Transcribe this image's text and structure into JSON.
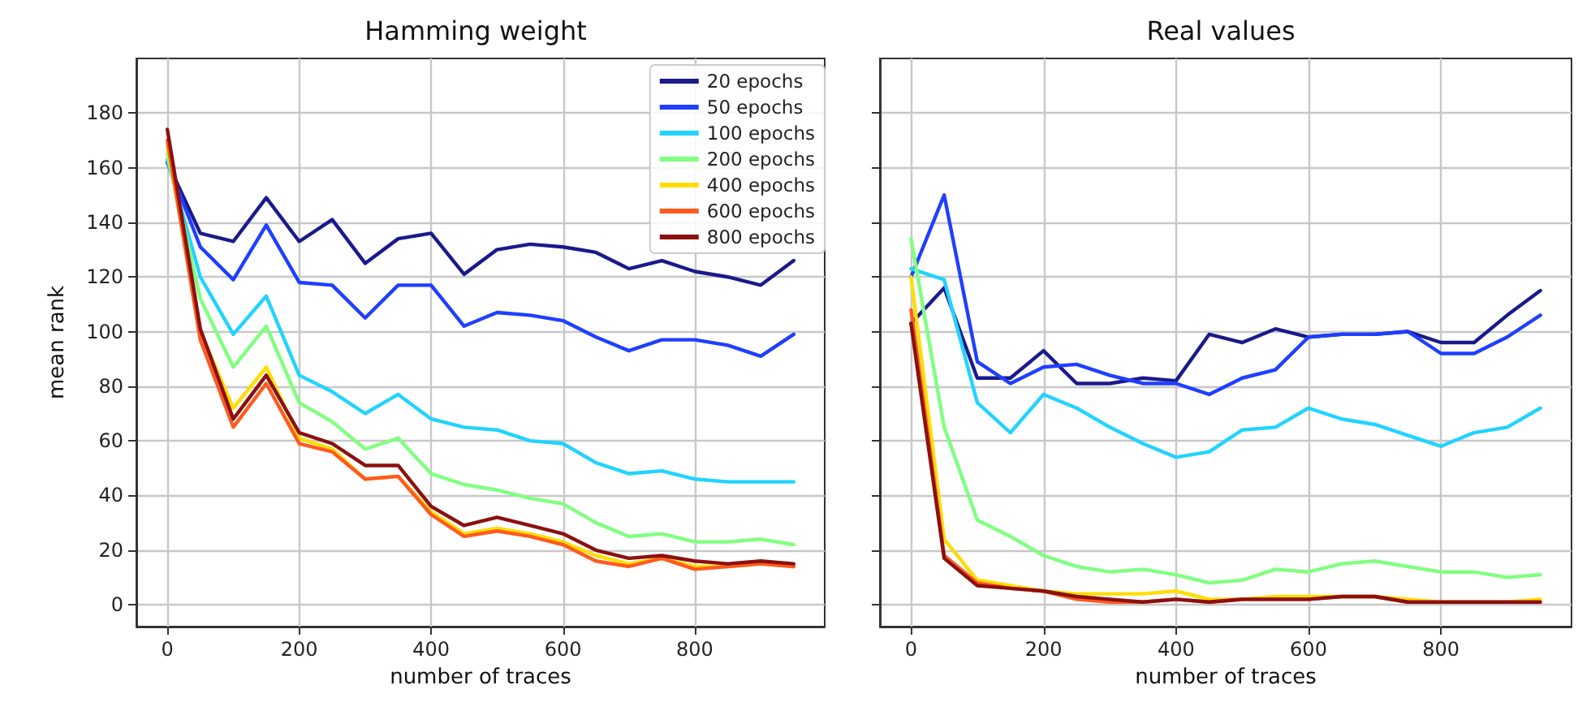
{
  "chart_data": [
    {
      "type": "line",
      "title": "Hamming weight",
      "xlabel": "number of traces",
      "ylabel": "mean rank",
      "x": [
        0,
        50,
        100,
        150,
        200,
        250,
        300,
        350,
        400,
        450,
        500,
        550,
        600,
        650,
        700,
        750,
        800,
        850,
        900,
        950
      ],
      "series": [
        {
          "name": "20 epochs",
          "color": "#1a1a8c",
          "values": [
            162,
            136,
            133,
            149,
            133,
            141,
            125,
            134,
            136,
            121,
            130,
            132,
            131,
            129,
            123,
            126,
            122,
            120,
            117,
            126
          ]
        },
        {
          "name": "50 epochs",
          "color": "#1f3fff",
          "values": [
            162,
            131,
            119,
            139,
            118,
            117,
            105,
            117,
            117,
            102,
            107,
            106,
            104,
            98,
            93,
            97,
            97,
            95,
            91,
            99
          ]
        },
        {
          "name": "100 epochs",
          "color": "#22d3ff",
          "values": [
            163,
            120,
            99,
            113,
            84,
            78,
            70,
            77,
            68,
            65,
            64,
            60,
            59,
            52,
            48,
            49,
            46,
            45,
            45,
            45
          ]
        },
        {
          "name": "200 epochs",
          "color": "#80ff80",
          "values": [
            165,
            112,
            87,
            102,
            74,
            67,
            57,
            61,
            48,
            44,
            42,
            39,
            37,
            30,
            25,
            26,
            23,
            23,
            24,
            22
          ]
        },
        {
          "name": "400 epochs",
          "color": "#ffdd00",
          "values": [
            168,
            100,
            72,
            87,
            61,
            57,
            46,
            47,
            34,
            26,
            28,
            26,
            23,
            18,
            15,
            17,
            14,
            14,
            15,
            14
          ]
        },
        {
          "name": "600 epochs",
          "color": "#ff5a1f",
          "values": [
            170,
            97,
            65,
            81,
            59,
            56,
            46,
            47,
            33,
            25,
            27,
            25,
            22,
            16,
            14,
            17,
            13,
            14,
            15,
            14
          ]
        },
        {
          "name": "800 epochs",
          "color": "#8b1010",
          "values": [
            174,
            101,
            68,
            84,
            63,
            59,
            51,
            51,
            36,
            29,
            32,
            29,
            26,
            20,
            17,
            18,
            16,
            15,
            16,
            15
          ]
        }
      ],
      "xlim": [
        -47,
        997
      ],
      "xticks": [
        0,
        200,
        400,
        600,
        800
      ],
      "ylim": [
        -8,
        200
      ],
      "yticks": [
        0,
        20,
        40,
        60,
        80,
        100,
        120,
        140,
        160,
        180
      ],
      "grid": true,
      "legend": "top right",
      "marker": "none",
      "line_style": "solid"
    },
    {
      "type": "line",
      "title": "Real values",
      "xlabel": "number of traces",
      "x": [
        0,
        50,
        100,
        150,
        200,
        250,
        300,
        350,
        400,
        450,
        500,
        550,
        600,
        650,
        700,
        750,
        800,
        850,
        900,
        950
      ],
      "series": [
        {
          "color": "#1a1a8c",
          "values": [
            103,
            116,
            83,
            83,
            93,
            81,
            81,
            83,
            82,
            99,
            96,
            101,
            98,
            99,
            99,
            100,
            96,
            96,
            106,
            115
          ]
        },
        {
          "color": "#1f3fff",
          "values": [
            120,
            150,
            89,
            81,
            87,
            88,
            84,
            81,
            81,
            77,
            83,
            86,
            98,
            99,
            99,
            100,
            92,
            92,
            98,
            106
          ]
        },
        {
          "color": "#22d3ff",
          "values": [
            123,
            119,
            74,
            63,
            77,
            72,
            65,
            59,
            54,
            56,
            64,
            65,
            72,
            68,
            66,
            62,
            58,
            63,
            65,
            72
          ]
        },
        {
          "color": "#80ff80",
          "values": [
            134,
            65,
            31,
            25,
            18,
            14,
            12,
            13,
            11,
            8,
            9,
            13,
            12,
            15,
            16,
            14,
            12,
            12,
            10,
            11
          ]
        },
        {
          "color": "#ffdd00",
          "values": [
            120,
            24,
            9,
            7,
            5,
            4,
            4,
            4,
            5,
            2,
            2,
            3,
            3,
            3,
            3,
            2,
            1,
            1,
            1,
            2
          ]
        },
        {
          "color": "#ff5a1f",
          "values": [
            108,
            18,
            8,
            6,
            5,
            2,
            1,
            1,
            2,
            1,
            2,
            2,
            2,
            3,
            3,
            1,
            null,
            null,
            null,
            null
          ]
        },
        {
          "color": "#8b1010",
          "values": [
            103,
            17,
            7,
            6,
            5,
            3,
            2,
            1,
            2,
            1,
            2,
            2,
            2,
            3,
            3,
            1,
            1,
            1,
            1,
            1
          ]
        }
      ],
      "xlim": [
        -47,
        997
      ],
      "xticks": [
        0,
        200,
        400,
        600,
        800
      ],
      "ylim": [
        -8,
        200
      ],
      "yticks": [
        0,
        20,
        40,
        60,
        80,
        100,
        120,
        140,
        160,
        180
      ],
      "tick_labels": "x",
      "grid": true,
      "marker": "none",
      "line_style": "solid"
    }
  ]
}
